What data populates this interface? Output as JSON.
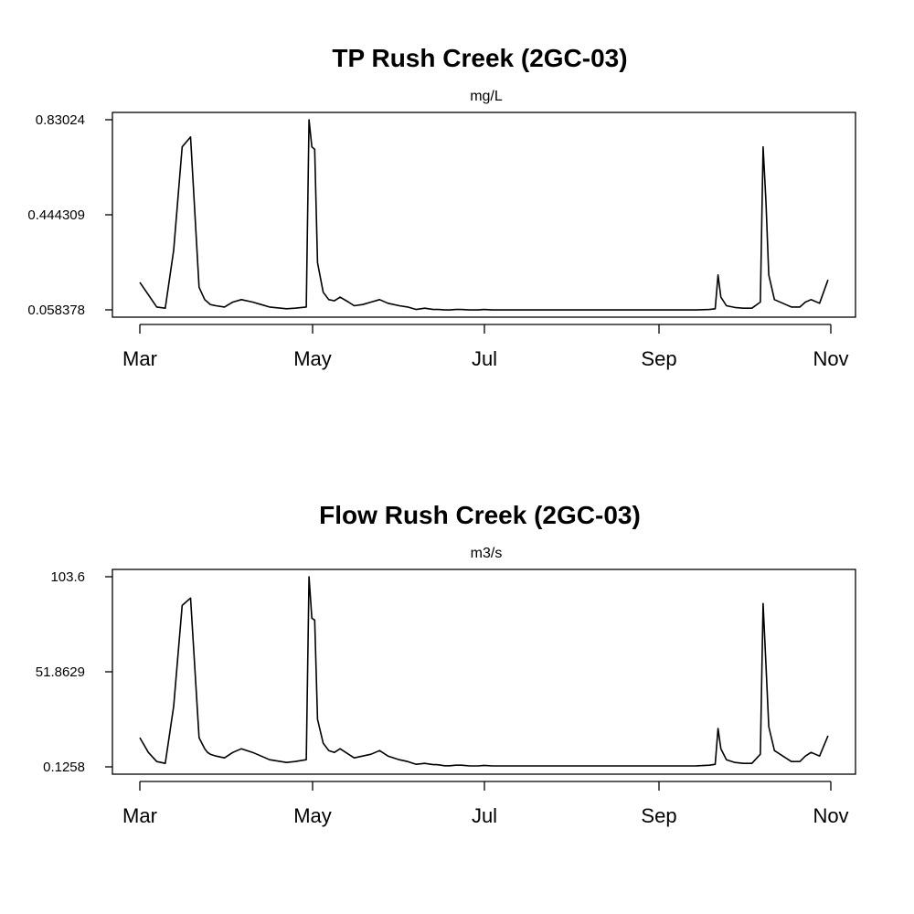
{
  "chart_data": [
    {
      "type": "line",
      "title": "TP Rush Creek (2GC-03)",
      "subtitle": "mg/L",
      "xlabel": "",
      "ylabel": "",
      "x_tick_labels": [
        "Mar",
        "May",
        "Jul",
        "Sep",
        "Nov"
      ],
      "y_tick_labels": [
        "0.83024",
        "0.444309",
        "0.058378"
      ],
      "ylim": [
        0.058378,
        0.83024
      ],
      "grid": false,
      "series": [
        {
          "x": [
            "Mar 01",
            "Mar 04",
            "Mar 07",
            "Mar 10",
            "Mar 13",
            "Mar 16",
            "Mar 19",
            "Mar 22",
            "Mar 24",
            "Mar 25",
            "Mar 26",
            "Mar 28",
            "Mar 31",
            "Apr 03",
            "Apr 06",
            "Apr 10",
            "Apr 13",
            "Apr 16",
            "Apr 20",
            "Apr 22",
            "Apr 25",
            "Apr 29",
            "Apr 30",
            "May 01",
            "May 02",
            "May 03",
            "May 05",
            "May 07",
            "May 09",
            "May 11",
            "May 14",
            "May 16",
            "May 19",
            "May 22",
            "May 25",
            "May 28",
            "Jun 01",
            "Jun 04",
            "Jun 07",
            "Jun 10",
            "Jun 13",
            "Jun 14",
            "Jun 15",
            "Jun 17",
            "Jun 19",
            "Jun 21",
            "Jun 23",
            "Jun 26",
            "Jun 29",
            "Jul 01",
            "Jul 04",
            "Jul 07",
            "Jul 10",
            "Jul 13",
            "Jul 16",
            "Jul 19",
            "Jul 22",
            "Jul 25",
            "Jul 28",
            "Jul 31",
            "Aug 03",
            "Aug 06",
            "Aug 10",
            "Aug 15",
            "Aug 20",
            "Aug 25",
            "Aug 30",
            "Sep 04",
            "Sep 09",
            "Sep 14",
            "Sep 19",
            "Sep 21",
            "Sep 22",
            "Sep 23",
            "Sep 25",
            "Sep 28",
            "Oct 01",
            "Oct 04",
            "Oct 07",
            "Oct 08",
            "Oct 09",
            "Oct 10",
            "Oct 12",
            "Oct 15",
            "Oct 18",
            "Oct 21",
            "Oct 23",
            "Oct 25",
            "Oct 28",
            "Oct 31"
          ],
          "values": [
            0.17,
            0.12,
            0.07,
            0.065,
            0.3,
            0.72,
            0.76,
            0.15,
            0.1,
            0.09,
            0.08,
            0.075,
            0.07,
            0.09,
            0.1,
            0.09,
            0.08,
            0.07,
            0.065,
            0.063,
            0.065,
            0.07,
            0.83,
            0.72,
            0.71,
            0.25,
            0.13,
            0.1,
            0.095,
            0.11,
            0.09,
            0.075,
            0.08,
            0.09,
            0.1,
            0.085,
            0.075,
            0.07,
            0.06,
            0.065,
            0.06,
            0.06,
            0.06,
            0.058,
            0.058,
            0.06,
            0.06,
            0.058,
            0.058,
            0.06,
            0.058,
            0.058,
            0.058,
            0.058,
            0.058,
            0.058,
            0.058,
            0.058,
            0.058,
            0.058,
            0.058,
            0.058,
            0.058,
            0.058,
            0.058,
            0.058,
            0.058,
            0.058,
            0.058,
            0.058,
            0.06,
            0.063,
            0.2,
            0.11,
            0.075,
            0.068,
            0.065,
            0.065,
            0.09,
            0.72,
            0.5,
            0.2,
            0.1,
            0.085,
            0.07,
            0.07,
            0.09,
            0.1,
            0.085,
            0.18
          ],
          "note_ignore": ""
        }
      ]
    },
    {
      "type": "line",
      "title": "Flow Rush Creek (2GC-03)",
      "subtitle": "m3/s",
      "xlabel": "",
      "ylabel": "",
      "x_tick_labels": [
        "Mar",
        "May",
        "Jul",
        "Sep",
        "Nov"
      ],
      "y_tick_labels": [
        "103.6",
        "51.8629",
        "0.1258"
      ],
      "ylim": [
        0.1258,
        103.6
      ],
      "grid": false,
      "series": [
        {
          "x": [
            "Mar 01",
            "Mar 04",
            "Mar 07",
            "Mar 10",
            "Mar 13",
            "Mar 16",
            "Mar 19",
            "Mar 22",
            "Mar 24",
            "Mar 25",
            "Mar 26",
            "Mar 28",
            "Mar 31",
            "Apr 03",
            "Apr 06",
            "Apr 10",
            "Apr 13",
            "Apr 16",
            "Apr 20",
            "Apr 22",
            "Apr 25",
            "Apr 29",
            "Apr 30",
            "May 01",
            "May 02",
            "May 03",
            "May 05",
            "May 07",
            "May 09",
            "May 11",
            "May 14",
            "May 16",
            "May 19",
            "May 22",
            "May 25",
            "May 28",
            "Jun 01",
            "Jun 04",
            "Jun 07",
            "Jun 10",
            "Jun 13",
            "Jun 14",
            "Jun 15",
            "Jun 17",
            "Jun 19",
            "Jun 21",
            "Jun 23",
            "Jun 26",
            "Jun 29",
            "Jul 01",
            "Jul 04",
            "Jul 07",
            "Jul 10",
            "Jul 13",
            "Jul 16",
            "Jul 19",
            "Jul 22",
            "Jul 25",
            "Jul 28",
            "Jul 31",
            "Aug 03",
            "Aug 06",
            "Aug 10",
            "Aug 15",
            "Aug 20",
            "Aug 25",
            "Aug 30",
            "Sep 04",
            "Sep 09",
            "Sep 14",
            "Sep 19",
            "Sep 21",
            "Sep 22",
            "Sep 23",
            "Sep 25",
            "Sep 28",
            "Oct 01",
            "Oct 04",
            "Oct 07",
            "Oct 08",
            "Oct 09",
            "Oct 10",
            "Oct 12",
            "Oct 15",
            "Oct 18",
            "Oct 21",
            "Oct 23",
            "Oct 25",
            "Oct 28",
            "Oct 31"
          ],
          "values": [
            16,
            8,
            3,
            2,
            33,
            88,
            92,
            16,
            10,
            8,
            7,
            6,
            5,
            8,
            10,
            8,
            6,
            4,
            3,
            2.5,
            3,
            4,
            103.6,
            81,
            80,
            26,
            13,
            9,
            8,
            10,
            7,
            5,
            6,
            7,
            9,
            6,
            4,
            3,
            1.5,
            2,
            1.3,
            1.3,
            1.2,
            0.7,
            0.7,
            1,
            1,
            0.6,
            0.6,
            0.9,
            0.6,
            0.6,
            0.6,
            0.6,
            0.6,
            0.6,
            0.6,
            0.6,
            0.6,
            0.6,
            0.6,
            0.6,
            0.6,
            0.6,
            0.6,
            0.6,
            0.6,
            0.6,
            0.6,
            0.6,
            1,
            1.5,
            21,
            10,
            4,
            2.5,
            2,
            2,
            7,
            89,
            56,
            22,
            9,
            6,
            3,
            3,
            6,
            8,
            6,
            17
          ]
        }
      ]
    }
  ]
}
